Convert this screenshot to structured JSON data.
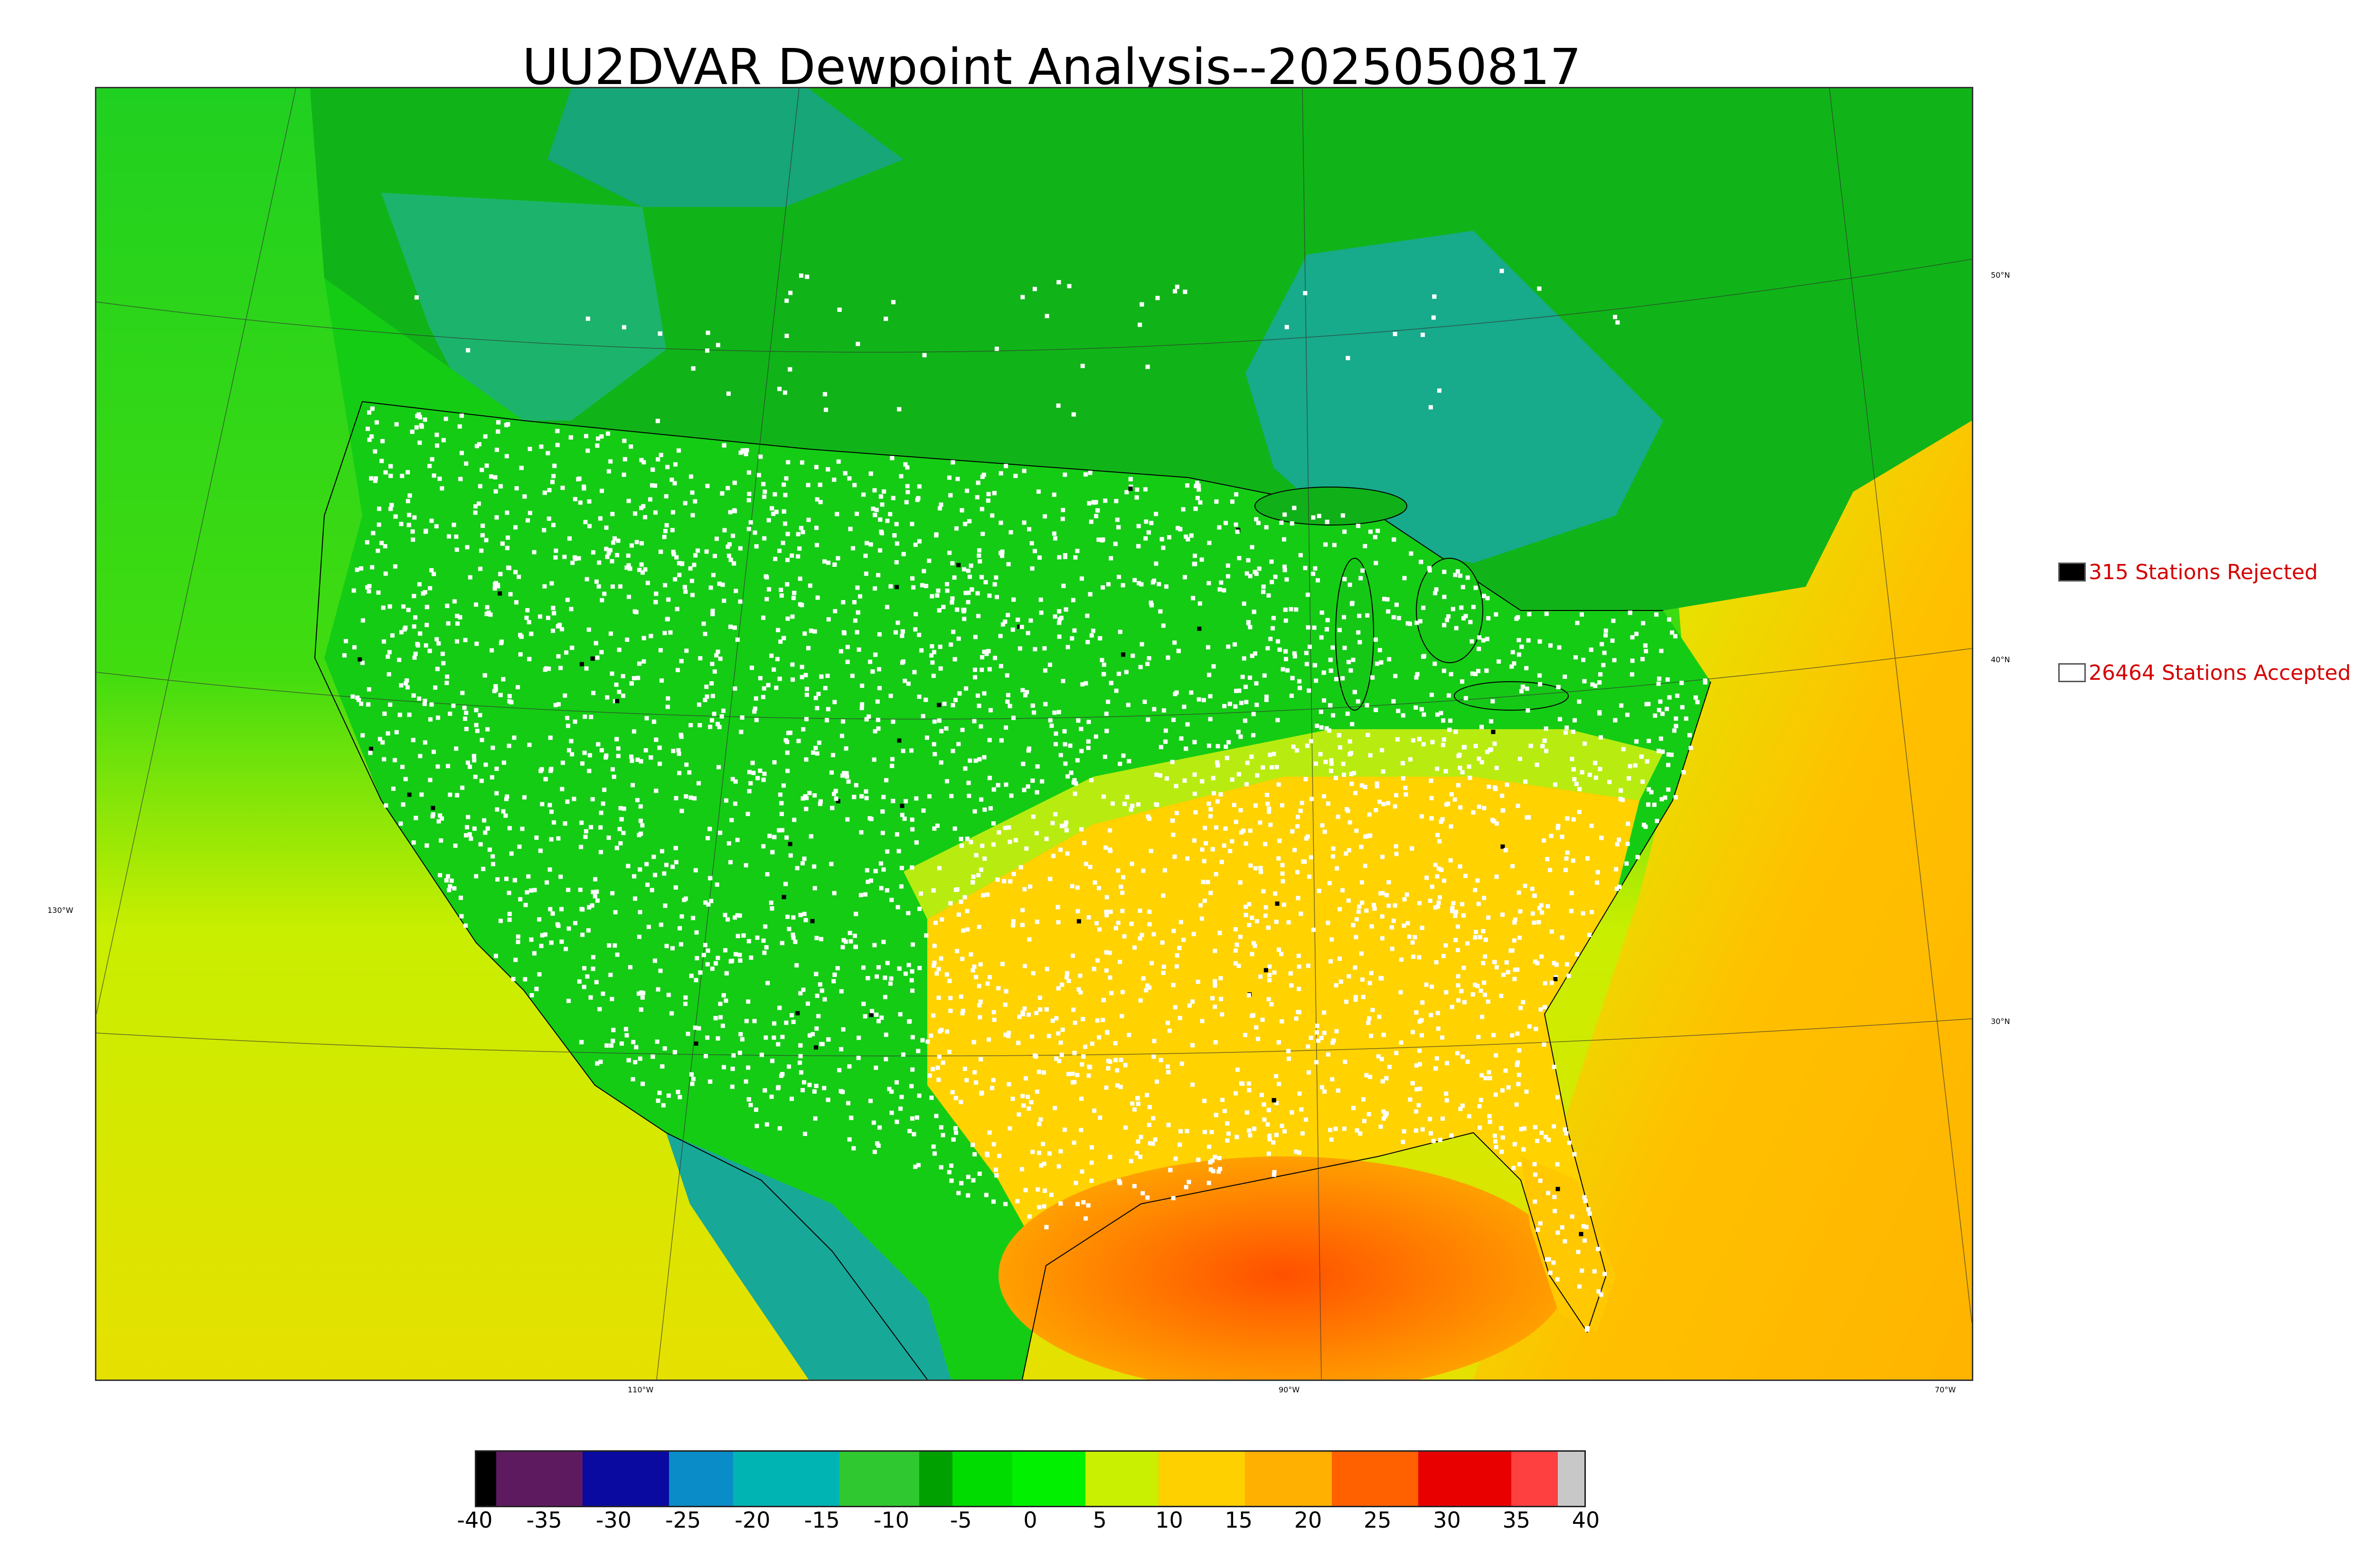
{
  "title": "UU2DVAR Dewpoint Analysis--2025050817",
  "graticule_labels": {
    "lon_130": "130°W",
    "lon_110": "110°W",
    "lon_90": "90°W",
    "lon_70": "70°W",
    "lat_50": "50°N",
    "lat_40": "40°N",
    "lat_30": "30°N"
  },
  "legend": {
    "rejected_label": "315 Stations Rejected",
    "accepted_label": "26464 Stations Accepted",
    "rejected_color": "#000000",
    "accepted_color": "#ffffff",
    "text_color": "#d40000"
  },
  "colorbar": {
    "ticks": [
      "-40",
      "-35",
      "-30",
      "-25",
      "-20",
      "-15",
      "-10",
      "-5",
      "0",
      "5",
      "10",
      "15",
      "20",
      "25",
      "30",
      "35",
      "40"
    ],
    "colors": [
      "#000000",
      "#5e1a5e",
      "#0a0aa0",
      "#0a8cc8",
      "#00b4b4",
      "#30c830",
      "#00a000",
      "#00dc00",
      "#00f000",
      "#c8f000",
      "#ffd000",
      "#ffb000",
      "#ff6000",
      "#e80000",
      "#ff4040",
      "#c8c8c8"
    ]
  },
  "map": {
    "ocean_pacific_color": "#d8ee10",
    "ocean_atlantic_color": "#ffbe00",
    "gulf_color": "#ff7000",
    "land_dry_color": "#16c816",
    "canada_color": "#10b010",
    "moist_south_color": "#ffd000",
    "dry_basin_color": "#1aa89a"
  }
}
